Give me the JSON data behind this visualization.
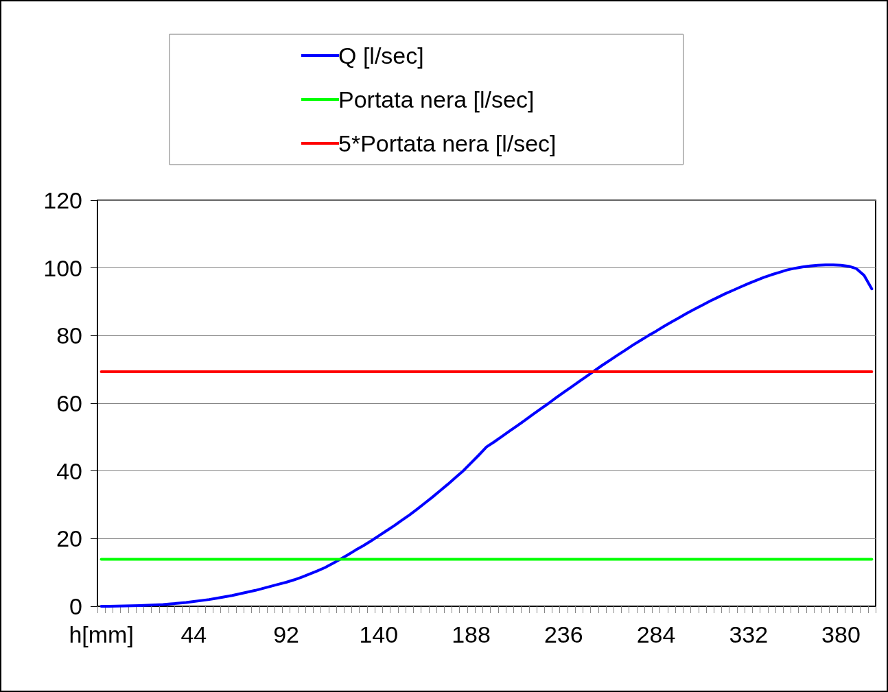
{
  "chart_data": {
    "type": "line",
    "xlabel": null,
    "categories": [
      "h[mm]",
      null,
      null,
      null,
      null,
      null,
      null,
      null,
      null,
      null,
      null,
      null,
      "44",
      null,
      null,
      null,
      null,
      null,
      null,
      null,
      null,
      null,
      null,
      null,
      "92",
      null,
      null,
      null,
      null,
      null,
      null,
      null,
      null,
      null,
      null,
      null,
      "140",
      null,
      null,
      null,
      null,
      null,
      null,
      null,
      null,
      null,
      null,
      null,
      "188",
      null,
      null,
      null,
      null,
      null,
      null,
      null,
      null,
      null,
      null,
      null,
      "236",
      null,
      null,
      null,
      null,
      null,
      null,
      null,
      null,
      null,
      null,
      null,
      "284",
      null,
      null,
      null,
      null,
      null,
      null,
      null,
      null,
      null,
      null,
      null,
      "332",
      null,
      null,
      null,
      null,
      null,
      null,
      null,
      null,
      null,
      null,
      null,
      "380",
      null,
      null,
      null,
      null
    ],
    "series": [
      {
        "name": "Q [l/sec]",
        "color": "#0000ff",
        "values": [
          0,
          0,
          0.05,
          0.1,
          0.15,
          0.2,
          0.3,
          0.4,
          0.5,
          0.7,
          0.9,
          1.1,
          1.4,
          1.7,
          2.0,
          2.4,
          2.8,
          3.2,
          3.7,
          4.2,
          4.7,
          5.3,
          5.9,
          6.5,
          7.1,
          7.8,
          8.6,
          9.5,
          10.4,
          11.4,
          12.6,
          13.9,
          15.2,
          16.6,
          17.9,
          19.3,
          20.8,
          22.3,
          23.8,
          25.4,
          27.0,
          28.7,
          30.5,
          32.3,
          34.2,
          36.1,
          38.1,
          40.1,
          42.4,
          44.7,
          47.1,
          48.6,
          50.2,
          51.8,
          53.4,
          55.0,
          56.7,
          58.3,
          59.9,
          61.6,
          63.2,
          64.8,
          66.4,
          68.0,
          69.6,
          71.2,
          72.7,
          74.2,
          75.7,
          77.2,
          78.6,
          80.0,
          81.3,
          82.7,
          84.0,
          85.3,
          86.6,
          87.8,
          89.0,
          90.2,
          91.3,
          92.4,
          93.4,
          94.4,
          95.4,
          96.3,
          97.2,
          98.0,
          98.7,
          99.4,
          99.9,
          100.3,
          100.6,
          100.8,
          100.9,
          100.9,
          100.8,
          100.5,
          99.8,
          97.8,
          93.8
        ]
      },
      {
        "name": "Portata nera [l/sec]",
        "color": "#00ff00",
        "values": [
          13.9,
          13.9,
          13.9,
          13.9,
          13.9,
          13.9,
          13.9,
          13.9,
          13.9,
          13.9,
          13.9,
          13.9,
          13.9,
          13.9,
          13.9,
          13.9,
          13.9,
          13.9,
          13.9,
          13.9,
          13.9,
          13.9,
          13.9,
          13.9,
          13.9,
          13.9,
          13.9,
          13.9,
          13.9,
          13.9,
          13.9,
          13.9,
          13.9,
          13.9,
          13.9,
          13.9,
          13.9,
          13.9,
          13.9,
          13.9,
          13.9,
          13.9,
          13.9,
          13.9,
          13.9,
          13.9,
          13.9,
          13.9,
          13.9,
          13.9,
          13.9,
          13.9,
          13.9,
          13.9,
          13.9,
          13.9,
          13.9,
          13.9,
          13.9,
          13.9,
          13.9,
          13.9,
          13.9,
          13.9,
          13.9,
          13.9,
          13.9,
          13.9,
          13.9,
          13.9,
          13.9,
          13.9,
          13.9,
          13.9,
          13.9,
          13.9,
          13.9,
          13.9,
          13.9,
          13.9,
          13.9,
          13.9,
          13.9,
          13.9,
          13.9,
          13.9,
          13.9,
          13.9,
          13.9,
          13.9,
          13.9,
          13.9,
          13.9,
          13.9,
          13.9,
          13.9,
          13.9,
          13.9,
          13.9,
          13.9,
          13.9
        ]
      },
      {
        "name": "5*Portata nera [l/sec]",
        "color": "#ff0000",
        "values": [
          69.3,
          69.3,
          69.3,
          69.3,
          69.3,
          69.3,
          69.3,
          69.3,
          69.3,
          69.3,
          69.3,
          69.3,
          69.3,
          69.3,
          69.3,
          69.3,
          69.3,
          69.3,
          69.3,
          69.3,
          69.3,
          69.3,
          69.3,
          69.3,
          69.3,
          69.3,
          69.3,
          69.3,
          69.3,
          69.3,
          69.3,
          69.3,
          69.3,
          69.3,
          69.3,
          69.3,
          69.3,
          69.3,
          69.3,
          69.3,
          69.3,
          69.3,
          69.3,
          69.3,
          69.3,
          69.3,
          69.3,
          69.3,
          69.3,
          69.3,
          69.3,
          69.3,
          69.3,
          69.3,
          69.3,
          69.3,
          69.3,
          69.3,
          69.3,
          69.3,
          69.3,
          69.3,
          69.3,
          69.3,
          69.3,
          69.3,
          69.3,
          69.3,
          69.3,
          69.3,
          69.3,
          69.3,
          69.3,
          69.3,
          69.3,
          69.3,
          69.3,
          69.3,
          69.3,
          69.3,
          69.3,
          69.3,
          69.3,
          69.3,
          69.3,
          69.3,
          69.3,
          69.3,
          69.3,
          69.3,
          69.3,
          69.3,
          69.3,
          69.3,
          69.3,
          69.3,
          69.3,
          69.3,
          69.3,
          69.3,
          69.3
        ]
      }
    ],
    "ylim": [
      0,
      120
    ],
    "yticks": [
      0,
      20,
      40,
      60,
      80,
      100,
      120
    ],
    "grid": "y",
    "legend": "top",
    "marker": "none",
    "line_style": "solid"
  }
}
